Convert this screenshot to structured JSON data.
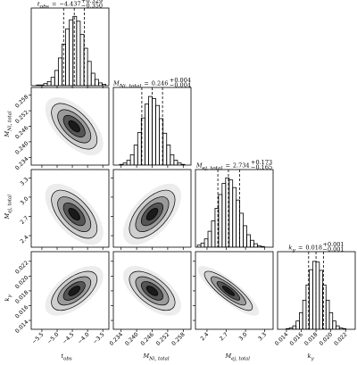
{
  "chart_data": {
    "type": "corner",
    "equals": "=",
    "hist_ylim": [
      0,
      112
    ],
    "corr": [
      [],
      [
        -0.6
      ],
      [
        -0.6,
        0.6
      ],
      [
        0.6,
        -0.6,
        -0.85
      ]
    ],
    "params": [
      {
        "symbol": "t",
        "sub": "obs",
        "median": {
          "value": -4.437,
          "label": "−4.437"
        },
        "plus": {
          "value": 0.329,
          "label": "+0.329"
        },
        "minus": {
          "value": -0.35,
          "label": "−0.350"
        },
        "quantiles": [
          -4.787,
          -4.437,
          -4.108
        ],
        "sd": 0.34,
        "lim": [
          -5.85,
          -3.3
        ],
        "ticks": [
          {
            "value": -5.5,
            "label": "−5.5"
          },
          {
            "value": -5,
            "label": "−5.0"
          },
          {
            "value": -4.5,
            "label": "−4.5"
          },
          {
            "value": -4,
            "label": "−4.0"
          },
          {
            "value": -3.5,
            "label": "−3.5"
          }
        ],
        "bins": [
          -5.8,
          -5.68,
          -5.56,
          -5.44,
          -5.32,
          -5.2,
          -5.08,
          -4.96,
          -4.84,
          -4.72,
          -4.6,
          -4.48,
          -4.36,
          -4.24,
          -4.12,
          -4.0,
          -3.88,
          -3.76,
          -3.64,
          -3.52,
          -3.4
        ],
        "counts": [
          0,
          1,
          1,
          3,
          6,
          12,
          22,
          40,
          60,
          82,
          95,
          100,
          93,
          74,
          54,
          35,
          18,
          9,
          4,
          2
        ]
      },
      {
        "symbol": "M",
        "sub": "Ni, total",
        "median": {
          "value": 0.246,
          "label": "0.246"
        },
        "plus": {
          "value": 0.004,
          "label": "+0.004"
        },
        "minus": {
          "value": -0.004,
          "label": "−0.004"
        },
        "quantiles": [
          0.242,
          0.246,
          0.25
        ],
        "sd": 0.004,
        "lim": [
          0.231,
          0.261
        ],
        "ticks": [
          0.234,
          {
            "value": 0.24,
            "label": "0.240"
          },
          0.246,
          0.252,
          0.258
        ],
        "bins": [
          0.232,
          0.2334,
          0.2348,
          0.2362,
          0.2376,
          0.239,
          0.2404,
          0.2418,
          0.2432,
          0.2446,
          0.246,
          0.2474,
          0.2488,
          0.2502,
          0.2516,
          0.253,
          0.2544,
          0.2558,
          0.2572,
          0.2586,
          0.26
        ],
        "counts": [
          0,
          1,
          3,
          7,
          15,
          29,
          47,
          68,
          88,
          99,
          96,
          86,
          67,
          46,
          29,
          15,
          7,
          3,
          1,
          0
        ]
      },
      {
        "symbol": "M",
        "sub": "ej, total",
        "median": {
          "value": 2.734,
          "label": "2.734"
        },
        "plus": {
          "value": 0.173,
          "label": "+0.173"
        },
        "minus": {
          "value": -0.165,
          "label": "−0.165"
        },
        "quantiles": [
          2.569,
          2.734,
          2.907
        ],
        "sd": 0.17,
        "lim": [
          2.22,
          3.43
        ],
        "ticks": [
          2.4,
          2.7,
          {
            "value": 3,
            "label": "3.0"
          },
          3.3
        ],
        "bins": [
          2.25,
          2.305,
          2.36,
          2.415,
          2.47,
          2.525,
          2.58,
          2.635,
          2.69,
          2.745,
          2.8,
          2.855,
          2.91,
          2.965,
          3.02,
          3.075,
          3.13,
          3.185,
          3.24,
          3.295,
          3.35
        ],
        "counts": [
          3,
          6,
          12,
          23,
          38,
          56,
          76,
          92,
          100,
          97,
          86,
          68,
          49,
          31,
          18,
          10,
          5,
          2,
          1,
          0
        ]
      },
      {
        "symbol": "k",
        "sub": "γ",
        "median": {
          "value": 0.018,
          "label": "0.018"
        },
        "plus": {
          "value": 0.001,
          "label": "+0.001"
        },
        "minus": {
          "value": -0.001,
          "label": "−0.001"
        },
        "quantiles": [
          0.017,
          0.018,
          0.019
        ],
        "sd": 0.0012,
        "lim": [
          0.0128,
          0.0233
        ],
        "ticks": [
          0.014,
          0.016,
          0.018,
          {
            "value": 0.02,
            "label": "0.020"
          },
          0.022
        ],
        "bins": [
          0.0135,
          0.01395,
          0.0144,
          0.01485,
          0.0153,
          0.01575,
          0.0162,
          0.01665,
          0.0171,
          0.01755,
          0.018,
          0.01845,
          0.0189,
          0.01935,
          0.0198,
          0.02025,
          0.0207,
          0.02115,
          0.0216,
          0.02205,
          0.0225
        ],
        "counts": [
          0,
          1,
          2,
          5,
          12,
          24,
          42,
          64,
          86,
          98,
          97,
          85,
          64,
          42,
          24,
          12,
          5,
          2,
          1,
          0
        ]
      }
    ]
  }
}
